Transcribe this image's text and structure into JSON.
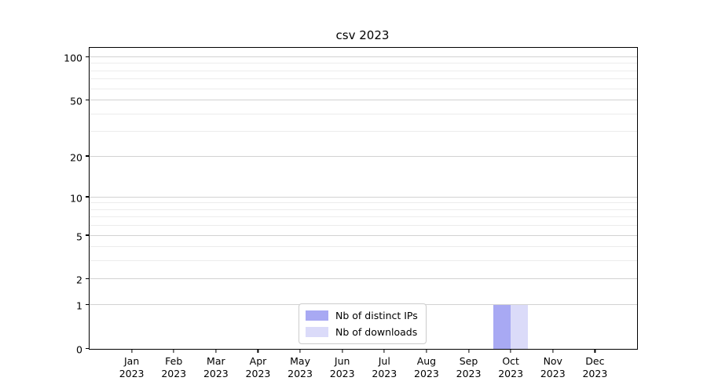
{
  "chart_data": {
    "type": "bar",
    "title": "csv 2023",
    "categories": [
      "Jan",
      "Feb",
      "Mar",
      "Apr",
      "May",
      "Jun",
      "Jul",
      "Aug",
      "Sep",
      "Oct",
      "Nov",
      "Dec"
    ],
    "category_year": "2023",
    "series": [
      {
        "name": "Nb of distinct IPs",
        "color": "#a8a9f3",
        "values": [
          0,
          0,
          0,
          0,
          0,
          0,
          0,
          0,
          0,
          1,
          0,
          0
        ]
      },
      {
        "name": "Nb of downloads",
        "color": "#dbdbf9",
        "values": [
          0,
          0,
          0,
          0,
          0,
          0,
          0,
          0,
          0,
          1,
          0,
          0
        ]
      }
    ],
    "xlabel": "",
    "ylabel": "",
    "y_scale": "log1p",
    "ylim": [
      0,
      115
    ],
    "y_major_ticks": [
      0,
      1,
      2,
      5,
      10,
      20,
      50,
      100
    ],
    "y_minor_gridlines": [
      3,
      4,
      6,
      7,
      8,
      9,
      30,
      40,
      60,
      70,
      80,
      90
    ],
    "grid": "horizontal",
    "legend_position": "lower-center"
  }
}
